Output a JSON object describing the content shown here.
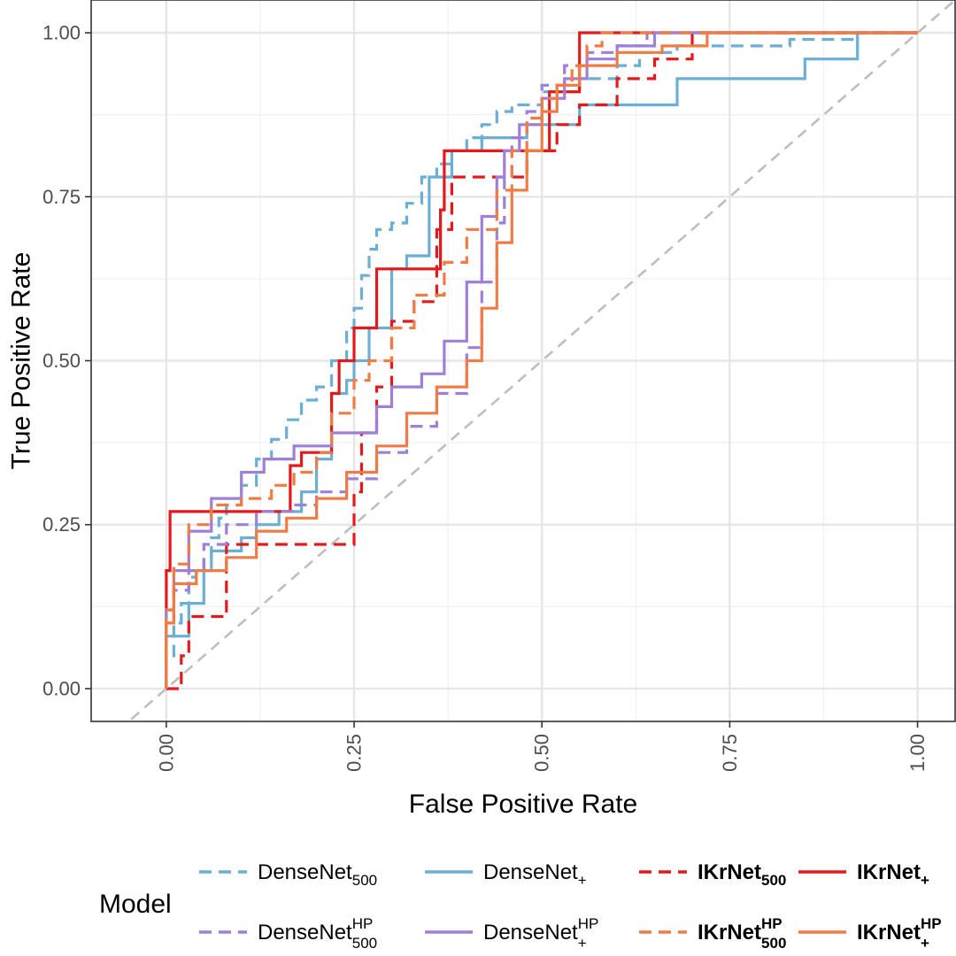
{
  "chart_data": {
    "type": "line",
    "title": "",
    "xlabel": "False Positive Rate",
    "ylabel": "True Positive Rate",
    "xlim": [
      -0.1,
      1.05
    ],
    "ylim": [
      -0.05,
      1.05
    ],
    "x_ticks": [
      0.0,
      0.25,
      0.5,
      0.75,
      1.0
    ],
    "x_tick_labels": [
      "0.00",
      "0.25",
      "0.50",
      "0.75",
      "1.00"
    ],
    "y_ticks": [
      0.0,
      0.25,
      0.5,
      0.75,
      1.0
    ],
    "y_tick_labels": [
      "0.00",
      "0.25",
      "0.50",
      "0.75",
      "1.00"
    ],
    "grid": true,
    "legend_title": "Model",
    "legend_position": "bottom",
    "reference_line": {
      "x": [
        -0.1,
        1.05
      ],
      "y": [
        -0.1,
        1.05
      ],
      "color": "#bebebe",
      "dash": "dashed"
    },
    "series": [
      {
        "id": "densenet500",
        "name": "DenseNet",
        "sub": "500",
        "sup": "",
        "bold": false,
        "color": "#6baed6",
        "dash": "dashed",
        "x": [
          0,
          0.01,
          0.02,
          0.03,
          0.04,
          0.05,
          0.06,
          0.07,
          0.08,
          0.1,
          0.12,
          0.14,
          0.16,
          0.18,
          0.2,
          0.22,
          0.24,
          0.25,
          0.26,
          0.27,
          0.28,
          0.3,
          0.32,
          0.34,
          0.36,
          0.38,
          0.4,
          0.42,
          0.44,
          0.46,
          0.48,
          0.5,
          0.55,
          0.6,
          0.63,
          0.68,
          0.75,
          0.83,
          0.92,
          1.0
        ],
        "y": [
          0,
          0.05,
          0.1,
          0.13,
          0.17,
          0.18,
          0.2,
          0.23,
          0.26,
          0.28,
          0.31,
          0.35,
          0.38,
          0.41,
          0.44,
          0.46,
          0.5,
          0.55,
          0.58,
          0.63,
          0.67,
          0.7,
          0.71,
          0.74,
          0.78,
          0.8,
          0.82,
          0.84,
          0.86,
          0.88,
          0.89,
          0.89,
          0.91,
          0.93,
          0.95,
          0.97,
          0.98,
          0.98,
          0.99,
          1.0
        ]
      },
      {
        "id": "densenet_plus",
        "name": "DenseNet",
        "sub": "+",
        "sup": "",
        "bold": false,
        "color": "#6baed6",
        "dash": "solid",
        "x": [
          0,
          0.03,
          0.05,
          0.06,
          0.1,
          0.12,
          0.15,
          0.18,
          0.2,
          0.22,
          0.24,
          0.25,
          0.27,
          0.3,
          0.32,
          0.35,
          0.38,
          0.39,
          0.42,
          0.48,
          0.55,
          0.68,
          0.85,
          0.92,
          1.0
        ],
        "y": [
          0,
          0.08,
          0.13,
          0.18,
          0.21,
          0.23,
          0.25,
          0.27,
          0.3,
          0.35,
          0.45,
          0.47,
          0.5,
          0.55,
          0.64,
          0.66,
          0.78,
          0.82,
          0.82,
          0.84,
          0.86,
          0.89,
          0.93,
          0.96,
          1.0
        ]
      },
      {
        "id": "ikrnet500",
        "name": "IKrNet",
        "sub": "500",
        "sup": "",
        "bold": true,
        "color": "#e31a1c",
        "dash": "dashed",
        "x": [
          0,
          0.02,
          0.03,
          0.05,
          0.08,
          0.1,
          0.15,
          0.2,
          0.25,
          0.26,
          0.28,
          0.3,
          0.33,
          0.36,
          0.38,
          0.4,
          0.45,
          0.48,
          0.52,
          0.55,
          0.6,
          0.65,
          0.7,
          0.8,
          1.0
        ],
        "y": [
          0,
          0.0,
          0.05,
          0.11,
          0.11,
          0.22,
          0.22,
          0.22,
          0.22,
          0.3,
          0.39,
          0.46,
          0.56,
          0.59,
          0.7,
          0.78,
          0.78,
          0.78,
          0.82,
          0.86,
          0.89,
          0.93,
          0.96,
          1.0,
          1.0
        ]
      },
      {
        "id": "ikrnet_plus",
        "name": "IKrNet",
        "sub": "+",
        "sup": "",
        "bold": true,
        "color": "#e31a1c",
        "dash": "solid",
        "x": [
          0,
          0.005,
          0.02,
          0.1,
          0.165,
          0.18,
          0.2,
          0.22,
          0.23,
          0.25,
          0.26,
          0.28,
          0.33,
          0.365,
          0.37,
          0.39,
          0.44,
          0.51,
          0.52,
          0.55,
          0.58,
          0.65,
          0.8,
          1.0
        ],
        "y": [
          0,
          0.18,
          0.27,
          0.27,
          0.27,
          0.34,
          0.36,
          0.36,
          0.45,
          0.5,
          0.55,
          0.55,
          0.64,
          0.64,
          0.73,
          0.82,
          0.82,
          0.82,
          0.91,
          0.91,
          1.0,
          1.0,
          1.0,
          1.0
        ]
      },
      {
        "id": "densenet500_hp",
        "name": "DenseNet",
        "sub": "500",
        "sup": "HP",
        "bold": false,
        "color": "#9e7fd9",
        "dash": "dashed",
        "x": [
          0,
          0.01,
          0.03,
          0.05,
          0.08,
          0.12,
          0.17,
          0.2,
          0.24,
          0.28,
          0.32,
          0.36,
          0.4,
          0.42,
          0.44,
          0.45,
          0.46,
          0.48,
          0.5,
          0.53,
          0.56,
          0.6,
          0.64,
          0.7,
          1.0
        ],
        "y": [
          0,
          0.1,
          0.15,
          0.18,
          0.22,
          0.25,
          0.27,
          0.28,
          0.3,
          0.32,
          0.36,
          0.4,
          0.45,
          0.52,
          0.62,
          0.71,
          0.78,
          0.84,
          0.88,
          0.92,
          0.95,
          0.97,
          0.98,
          1.0,
          1.0
        ]
      },
      {
        "id": "densenet_plus_hp",
        "name": "DenseNet",
        "sub": "+",
        "sup": "HP",
        "bold": false,
        "color": "#9e7fd9",
        "dash": "solid",
        "x": [
          0,
          0.01,
          0.03,
          0.06,
          0.1,
          0.13,
          0.17,
          0.19,
          0.22,
          0.25,
          0.28,
          0.3,
          0.34,
          0.37,
          0.4,
          0.42,
          0.44,
          0.45,
          0.47,
          0.5,
          0.53,
          0.56,
          0.6,
          0.65,
          0.7,
          1.0
        ],
        "y": [
          0,
          0.12,
          0.18,
          0.24,
          0.29,
          0.33,
          0.35,
          0.37,
          0.37,
          0.39,
          0.39,
          0.43,
          0.46,
          0.48,
          0.53,
          0.62,
          0.72,
          0.78,
          0.82,
          0.86,
          0.9,
          0.93,
          0.96,
          0.98,
          1.0,
          1.0
        ]
      },
      {
        "id": "ikrnet500_hp",
        "name": "IKrNet",
        "sub": "500",
        "sup": "HP",
        "bold": true,
        "color": "#f07c45",
        "dash": "dashed",
        "x": [
          0,
          0.01,
          0.03,
          0.06,
          0.1,
          0.14,
          0.17,
          0.2,
          0.22,
          0.25,
          0.27,
          0.3,
          0.33,
          0.37,
          0.4,
          0.44,
          0.46,
          0.48,
          0.5,
          0.52,
          0.54,
          0.56,
          0.58,
          0.62,
          1.0
        ],
        "y": [
          0,
          0.12,
          0.19,
          0.25,
          0.28,
          0.29,
          0.31,
          0.33,
          0.36,
          0.42,
          0.47,
          0.5,
          0.55,
          0.6,
          0.65,
          0.7,
          0.76,
          0.82,
          0.87,
          0.9,
          0.92,
          0.95,
          0.98,
          1.0,
          1.0
        ]
      },
      {
        "id": "ikrnet_plus_hp",
        "name": "IKrNet",
        "sub": "+",
        "sup": "HP",
        "bold": true,
        "color": "#f07c45",
        "dash": "solid",
        "x": [
          0,
          0.01,
          0.04,
          0.08,
          0.12,
          0.16,
          0.2,
          0.24,
          0.28,
          0.32,
          0.36,
          0.4,
          0.42,
          0.44,
          0.46,
          0.48,
          0.5,
          0.52,
          0.55,
          0.6,
          0.66,
          0.72,
          0.8,
          1.0
        ],
        "y": [
          0,
          0.1,
          0.16,
          0.18,
          0.2,
          0.24,
          0.26,
          0.29,
          0.33,
          0.37,
          0.42,
          0.46,
          0.5,
          0.58,
          0.68,
          0.76,
          0.82,
          0.88,
          0.92,
          0.95,
          0.97,
          0.98,
          1.0,
          1.0
        ]
      }
    ]
  }
}
